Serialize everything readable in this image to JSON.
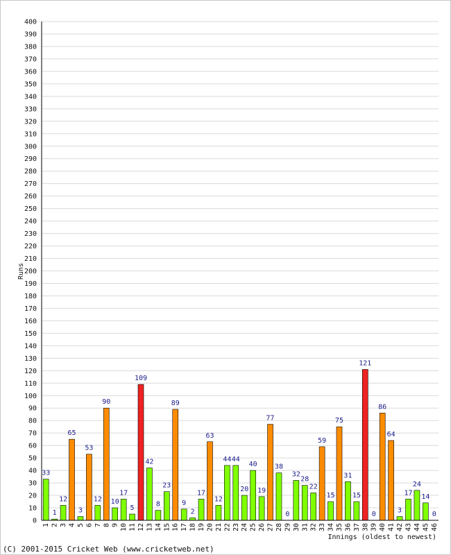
{
  "chart_data": {
    "type": "bar",
    "title": "",
    "xlabel": "Innings (oldest to newest)",
    "ylabel": "Runs",
    "ylim": [
      0,
      400
    ],
    "ytick_step": 10,
    "grid": true,
    "categories": [
      "1",
      "2",
      "3",
      "4",
      "5",
      "6",
      "7",
      "8",
      "9",
      "10",
      "11",
      "12",
      "13",
      "14",
      "15",
      "16",
      "17",
      "18",
      "19",
      "20",
      "21",
      "22",
      "23",
      "24",
      "25",
      "26",
      "27",
      "28",
      "29",
      "30",
      "31",
      "32",
      "33",
      "34",
      "35",
      "36",
      "37",
      "38",
      "39",
      "40",
      "41",
      "42",
      "43",
      "44",
      "45",
      "46"
    ],
    "values": [
      33,
      1,
      12,
      65,
      3,
      53,
      12,
      90,
      10,
      17,
      5,
      109,
      42,
      8,
      23,
      89,
      9,
      2,
      17,
      63,
      12,
      44,
      44,
      20,
      40,
      19,
      77,
      38,
      0,
      32,
      28,
      22,
      59,
      15,
      75,
      31,
      15,
      121,
      0,
      86,
      64,
      3,
      17,
      24,
      14,
      0
    ],
    "colors": {
      "below_50": "#7fff00",
      "fifty_plus": "#ff8c00",
      "hundred_plus": "#ee2222",
      "bar_outline": "#000000",
      "grid": "#d9d9d9",
      "label": "#1a1a8c"
    }
  },
  "footer": {
    "copyright": "(C) 2001-2015 Cricket Web (www.cricketweb.net)"
  }
}
